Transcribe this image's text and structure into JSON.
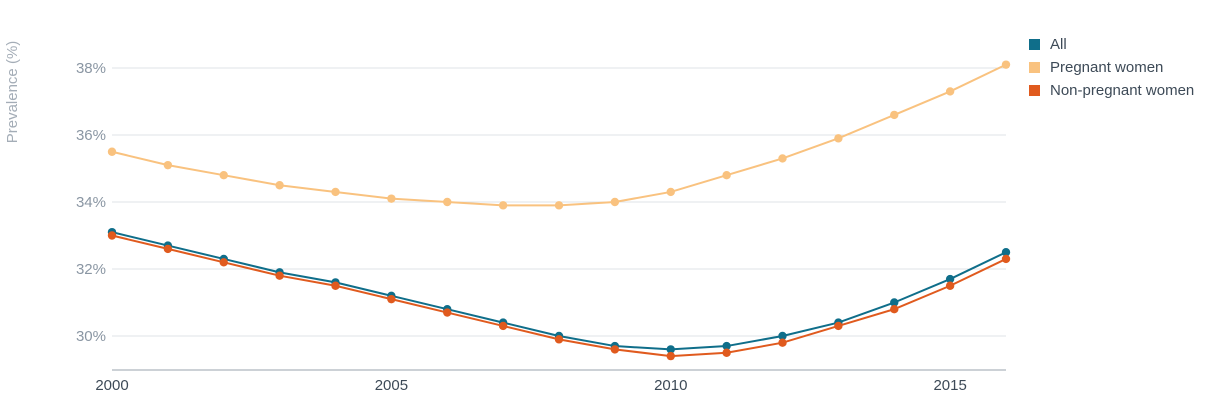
{
  "chart_data": {
    "type": "line",
    "ylabel": "Prevalence (%)",
    "xlabel": "",
    "x": [
      2000,
      2001,
      2002,
      2003,
      2004,
      2005,
      2006,
      2007,
      2008,
      2009,
      2010,
      2011,
      2012,
      2013,
      2014,
      2015,
      2016
    ],
    "x_ticks": [
      {
        "value": 2000,
        "label": "2000"
      },
      {
        "value": 2005,
        "label": "2005"
      },
      {
        "value": 2010,
        "label": "2010"
      },
      {
        "value": 2015,
        "label": "2015"
      }
    ],
    "y_ticks": [
      {
        "value": 30,
        "label": "30%"
      },
      {
        "value": 32,
        "label": "32%"
      },
      {
        "value": 34,
        "label": "34%"
      },
      {
        "value": 36,
        "label": "36%"
      },
      {
        "value": 38,
        "label": "38%"
      }
    ],
    "xlim": [
      2000,
      2016
    ],
    "ylim": [
      29,
      39
    ],
    "grid": "horizontal",
    "legend_position": "top-right",
    "series": [
      {
        "name": "All",
        "color": "#0f6e8a",
        "values": [
          33.1,
          32.7,
          32.3,
          31.9,
          31.6,
          31.2,
          30.8,
          30.4,
          30.0,
          29.7,
          29.6,
          29.7,
          30.0,
          30.4,
          31.0,
          31.7,
          32.5
        ]
      },
      {
        "name": "Pregnant women",
        "color": "#f9c27f",
        "values": [
          35.5,
          35.1,
          34.8,
          34.5,
          34.3,
          34.1,
          34.0,
          33.9,
          33.9,
          34.0,
          34.3,
          34.8,
          35.3,
          35.9,
          36.6,
          37.3,
          38.1
        ]
      },
      {
        "name": "Non-pregnant women",
        "color": "#e05a1e",
        "values": [
          33.0,
          32.6,
          32.2,
          31.8,
          31.5,
          31.1,
          30.7,
          30.3,
          29.9,
          29.6,
          29.4,
          29.5,
          29.8,
          30.3,
          30.8,
          31.5,
          32.3
        ]
      }
    ]
  }
}
